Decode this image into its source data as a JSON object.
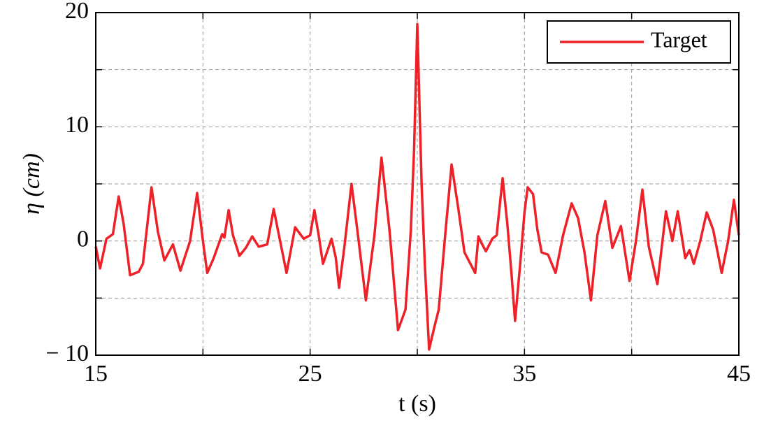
{
  "chart_data": {
    "type": "line",
    "xlabel": "t (s)",
    "ylabel": "η (cm)",
    "x": [
      15.0,
      15.2,
      15.5,
      15.8,
      16.07,
      16.3,
      16.6,
      17.0,
      17.2,
      17.6,
      17.9,
      18.2,
      18.6,
      18.95,
      19.4,
      19.73,
      20.0,
      20.2,
      20.5,
      20.9,
      21.0,
      21.2,
      21.4,
      21.7,
      22.0,
      22.3,
      22.6,
      23.0,
      23.3,
      23.6,
      23.9,
      24.3,
      24.7,
      25.0,
      25.2,
      25.4,
      25.6,
      26.0,
      26.2,
      26.35,
      26.6,
      26.93,
      27.2,
      27.6,
      28.0,
      28.33,
      28.7,
      29.1,
      29.45,
      29.7,
      29.85,
      30.0,
      30.2,
      30.35,
      30.55,
      30.8,
      31.0,
      31.3,
      31.6,
      31.9,
      32.2,
      32.7,
      32.85,
      33.0,
      33.2,
      33.5,
      33.7,
      33.98,
      34.2,
      34.4,
      34.56,
      34.8,
      35.0,
      35.15,
      35.4,
      35.6,
      35.8,
      36.1,
      36.45,
      36.8,
      37.2,
      37.5,
      37.8,
      38.1,
      38.4,
      38.77,
      39.1,
      39.5,
      39.9,
      40.2,
      40.5,
      40.8,
      41.2,
      41.6,
      41.9,
      42.15,
      42.5,
      42.7,
      42.9,
      43.2,
      43.5,
      43.8,
      44.2,
      44.5,
      44.77,
      45.0
    ],
    "series": [
      {
        "name": "Target",
        "color": "#ee2128",
        "values": [
          -0.5,
          -2.4,
          0.2,
          0.6,
          3.9,
          1.5,
          -3.0,
          -2.7,
          -2.0,
          4.7,
          0.8,
          -1.7,
          -0.3,
          -2.6,
          0.0,
          4.2,
          0.0,
          -2.8,
          -1.5,
          0.6,
          0.3,
          2.7,
          0.5,
          -1.3,
          -0.6,
          0.4,
          -0.5,
          -0.3,
          2.8,
          0.0,
          -2.8,
          1.2,
          0.2,
          0.5,
          2.7,
          0.5,
          -2.0,
          0.2,
          -1.5,
          -4.1,
          -0.5,
          5.0,
          1.0,
          -5.2,
          0.5,
          7.3,
          1.0,
          -7.8,
          -6.0,
          1.0,
          8.0,
          19.0,
          5.0,
          -2.0,
          -9.5,
          -7.5,
          -6.0,
          0.5,
          6.7,
          3.0,
          -1.0,
          -2.8,
          0.4,
          -0.2,
          -0.9,
          0.2,
          0.5,
          5.5,
          1.5,
          -3.0,
          -7.0,
          -2.0,
          2.5,
          4.7,
          4.1,
          1.0,
          -1.0,
          -1.2,
          -2.8,
          0.5,
          3.3,
          2.0,
          -1.0,
          -5.2,
          0.5,
          3.5,
          -0.6,
          1.3,
          -3.5,
          0.0,
          4.5,
          -0.5,
          -3.8,
          2.6,
          0.0,
          2.6,
          -1.5,
          -0.8,
          -2.0,
          0.0,
          2.5,
          1.0,
          -2.8,
          0.0,
          3.6,
          0.5
        ]
      }
    ],
    "xlim": [
      15,
      45
    ],
    "ylim": [
      -10,
      20
    ],
    "xticks": [
      15,
      25,
      35,
      45
    ],
    "xminorticks": [
      20,
      30,
      40
    ],
    "yticks": [
      {
        "value": -10,
        "label": "− 10"
      },
      0,
      10,
      20
    ],
    "yminorticks": [
      -5,
      5,
      15
    ],
    "grid": true,
    "legend": "upper right"
  }
}
